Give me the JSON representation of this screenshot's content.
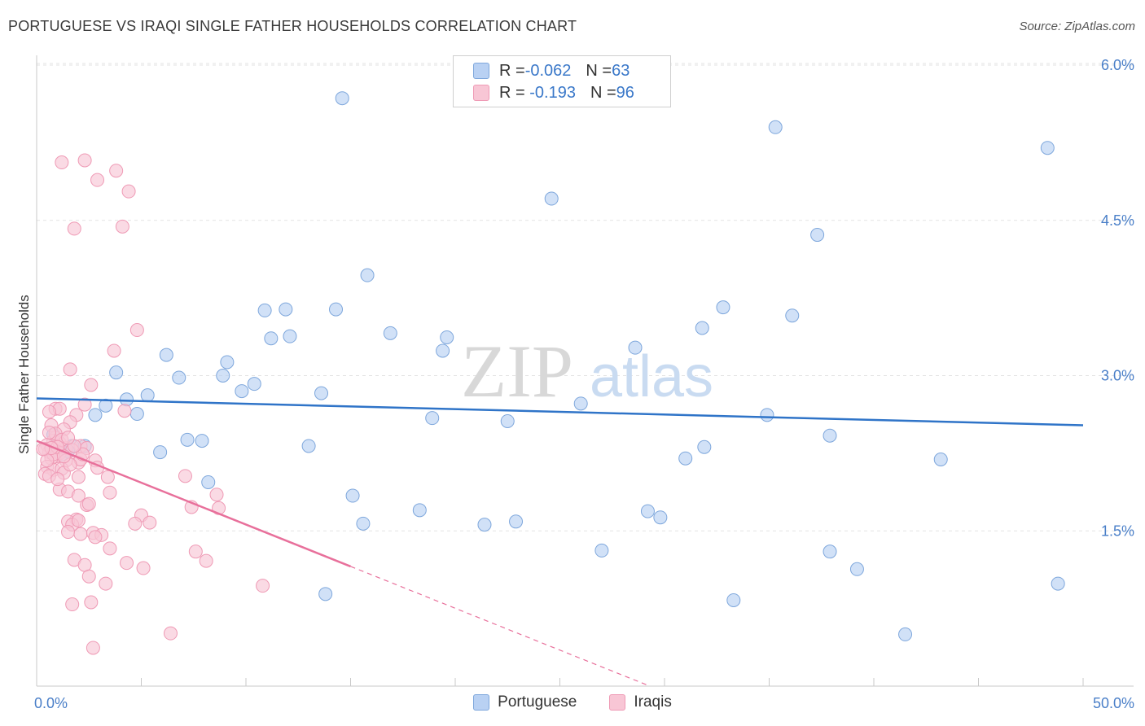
{
  "title": "PORTUGUESE VS IRAQI SINGLE FATHER HOUSEHOLDS CORRELATION CHART",
  "source": "Source: ZipAtlas.com",
  "watermark": {
    "zip": "ZIP",
    "atlas": "atlas"
  },
  "legend": {
    "portuguese": {
      "r_label": "R = ",
      "r_value": "-0.062",
      "n_label": "N = ",
      "n_value": "63"
    },
    "iraqis": {
      "r_label": "R = ",
      "r_value": " -0.193",
      "n_label": "N = ",
      "n_value": "96"
    }
  },
  "bottom_legend": {
    "portuguese": "Portuguese",
    "iraqis": "Iraqis"
  },
  "colors": {
    "blue_fill": "#b9d1f3",
    "blue_stroke": "#7ea7dc",
    "blue_line": "#2f74c8",
    "pink_fill": "#f8c6d5",
    "pink_stroke": "#ef9ab5",
    "pink_line": "#e8709b",
    "tick_text": "#4a7fc8",
    "grid": "#e3e3e3"
  },
  "chart_data": {
    "type": "scatter",
    "title": "PORTUGUESE VS IRAQI SINGLE FATHER HOUSEHOLDS CORRELATION CHART",
    "xlabel": "",
    "ylabel": "Single Father Households",
    "xlim": [
      0,
      50
    ],
    "ylim": [
      0,
      6.0
    ],
    "x_tick_labels": [
      "0.0%",
      "50.0%"
    ],
    "y_ticks": [
      1.5,
      3.0,
      4.5,
      6.0
    ],
    "y_tick_labels": [
      "1.5%",
      "3.0%",
      "4.5%",
      "6.0%"
    ],
    "series": [
      {
        "name": "Portuguese",
        "r": -0.062,
        "n": 63,
        "trend": {
          "x": [
            0,
            50
          ],
          "y": [
            2.78,
            2.52
          ],
          "dash_from": null
        },
        "points": [
          [
            14.6,
            5.68
          ],
          [
            35.3,
            5.4
          ],
          [
            48.3,
            5.2
          ],
          [
            24.6,
            4.71
          ],
          [
            37.3,
            4.36
          ],
          [
            15.8,
            3.97
          ],
          [
            10.9,
            3.63
          ],
          [
            11.9,
            3.64
          ],
          [
            14.3,
            3.64
          ],
          [
            32.8,
            3.66
          ],
          [
            36.1,
            3.58
          ],
          [
            11.2,
            3.36
          ],
          [
            12.1,
            3.38
          ],
          [
            16.9,
            3.41
          ],
          [
            19.6,
            3.37
          ],
          [
            31.8,
            3.46
          ],
          [
            19.4,
            3.24
          ],
          [
            28.6,
            3.27
          ],
          [
            6.2,
            3.2
          ],
          [
            9.1,
            3.13
          ],
          [
            3.8,
            3.03
          ],
          [
            6.8,
            2.98
          ],
          [
            8.9,
            3.0
          ],
          [
            10.4,
            2.92
          ],
          [
            9.8,
            2.85
          ],
          [
            13.6,
            2.83
          ],
          [
            5.3,
            2.81
          ],
          [
            4.3,
            2.77
          ],
          [
            3.3,
            2.71
          ],
          [
            26.0,
            2.73
          ],
          [
            2.8,
            2.62
          ],
          [
            4.8,
            2.63
          ],
          [
            18.9,
            2.59
          ],
          [
            22.5,
            2.56
          ],
          [
            34.9,
            2.62
          ],
          [
            7.2,
            2.38
          ],
          [
            7.9,
            2.37
          ],
          [
            13.0,
            2.32
          ],
          [
            31.9,
            2.31
          ],
          [
            37.9,
            2.42
          ],
          [
            1.7,
            2.32
          ],
          [
            2.3,
            2.32
          ],
          [
            1.2,
            2.24
          ],
          [
            5.9,
            2.26
          ],
          [
            0.8,
            2.43
          ],
          [
            31.0,
            2.2
          ],
          [
            43.2,
            2.19
          ],
          [
            8.2,
            1.97
          ],
          [
            15.1,
            1.84
          ],
          [
            18.3,
            1.7
          ],
          [
            29.2,
            1.69
          ],
          [
            29.8,
            1.63
          ],
          [
            15.6,
            1.57
          ],
          [
            21.4,
            1.56
          ],
          [
            22.9,
            1.59
          ],
          [
            27.0,
            1.31
          ],
          [
            37.9,
            1.3
          ],
          [
            39.2,
            1.13
          ],
          [
            48.8,
            0.99
          ],
          [
            13.8,
            0.89
          ],
          [
            33.3,
            0.83
          ],
          [
            41.5,
            0.5
          ],
          [
            1.5,
            2.27
          ]
        ]
      },
      {
        "name": "Iraqis",
        "r": -0.193,
        "n": 96,
        "trend": {
          "x": [
            0,
            29.3
          ],
          "y": [
            2.37,
            0.0
          ],
          "solid_until_x": 15.0
        },
        "points": [
          [
            1.2,
            5.06
          ],
          [
            2.3,
            5.08
          ],
          [
            3.8,
            4.98
          ],
          [
            4.4,
            4.78
          ],
          [
            2.9,
            4.89
          ],
          [
            1.8,
            4.42
          ],
          [
            4.1,
            4.44
          ],
          [
            4.8,
            3.44
          ],
          [
            3.7,
            3.24
          ],
          [
            1.6,
            3.06
          ],
          [
            2.6,
            2.91
          ],
          [
            0.9,
            2.68
          ],
          [
            1.1,
            2.68
          ],
          [
            2.3,
            2.72
          ],
          [
            4.2,
            2.66
          ],
          [
            1.9,
            2.62
          ],
          [
            1.6,
            2.55
          ],
          [
            0.6,
            2.65
          ],
          [
            0.7,
            2.52
          ],
          [
            1.3,
            2.48
          ],
          [
            0.9,
            2.4
          ],
          [
            1.1,
            2.35
          ],
          [
            0.8,
            2.37
          ],
          [
            0.5,
            2.33
          ],
          [
            1.4,
            2.3
          ],
          [
            2.1,
            2.32
          ],
          [
            2.4,
            2.3
          ],
          [
            0.6,
            2.26
          ],
          [
            0.9,
            2.22
          ],
          [
            1.1,
            2.25
          ],
          [
            1.7,
            2.28
          ],
          [
            0.7,
            2.2
          ],
          [
            1.4,
            2.18
          ],
          [
            2.0,
            2.16
          ],
          [
            2.8,
            2.18
          ],
          [
            0.5,
            2.12
          ],
          [
            0.8,
            2.09
          ],
          [
            1.2,
            2.1
          ],
          [
            0.4,
            2.05
          ],
          [
            0.6,
            2.03
          ],
          [
            1.3,
            2.06
          ],
          [
            2.1,
            2.19
          ],
          [
            3.4,
            2.02
          ],
          [
            7.1,
            2.03
          ],
          [
            2.0,
            2.02
          ],
          [
            1.1,
            1.9
          ],
          [
            1.5,
            1.88
          ],
          [
            3.5,
            1.87
          ],
          [
            8.6,
            1.85
          ],
          [
            2.0,
            1.84
          ],
          [
            2.4,
            1.75
          ],
          [
            7.4,
            1.73
          ],
          [
            2.5,
            1.76
          ],
          [
            8.7,
            1.72
          ],
          [
            5.0,
            1.65
          ],
          [
            1.9,
            1.61
          ],
          [
            1.5,
            1.59
          ],
          [
            1.7,
            1.56
          ],
          [
            4.7,
            1.57
          ],
          [
            5.4,
            1.58
          ],
          [
            1.5,
            1.49
          ],
          [
            2.1,
            1.47
          ],
          [
            2.7,
            1.48
          ],
          [
            3.1,
            1.46
          ],
          [
            2.8,
            1.44
          ],
          [
            3.5,
            1.33
          ],
          [
            7.6,
            1.3
          ],
          [
            1.8,
            1.22
          ],
          [
            2.3,
            1.17
          ],
          [
            4.3,
            1.19
          ],
          [
            8.1,
            1.21
          ],
          [
            5.1,
            1.14
          ],
          [
            2.5,
            1.06
          ],
          [
            3.3,
            0.99
          ],
          [
            10.8,
            0.97
          ],
          [
            1.7,
            0.79
          ],
          [
            2.6,
            0.81
          ],
          [
            6.4,
            0.51
          ],
          [
            2.7,
            0.37
          ],
          [
            0.9,
            2.44
          ],
          [
            1.2,
            2.38
          ],
          [
            0.4,
            2.29
          ],
          [
            1.6,
            2.14
          ],
          [
            0.8,
            2.24
          ],
          [
            1.0,
            2.31
          ],
          [
            1.3,
            2.22
          ],
          [
            0.6,
            2.45
          ],
          [
            2.2,
            2.24
          ],
          [
            1.8,
            2.32
          ],
          [
            0.5,
            2.18
          ],
          [
            1.5,
            2.4
          ],
          [
            0.7,
            2.3
          ],
          [
            2.0,
            1.6
          ],
          [
            1.0,
            2.0
          ],
          [
            2.9,
            2.11
          ],
          [
            0.3,
            2.29
          ]
        ]
      }
    ]
  }
}
